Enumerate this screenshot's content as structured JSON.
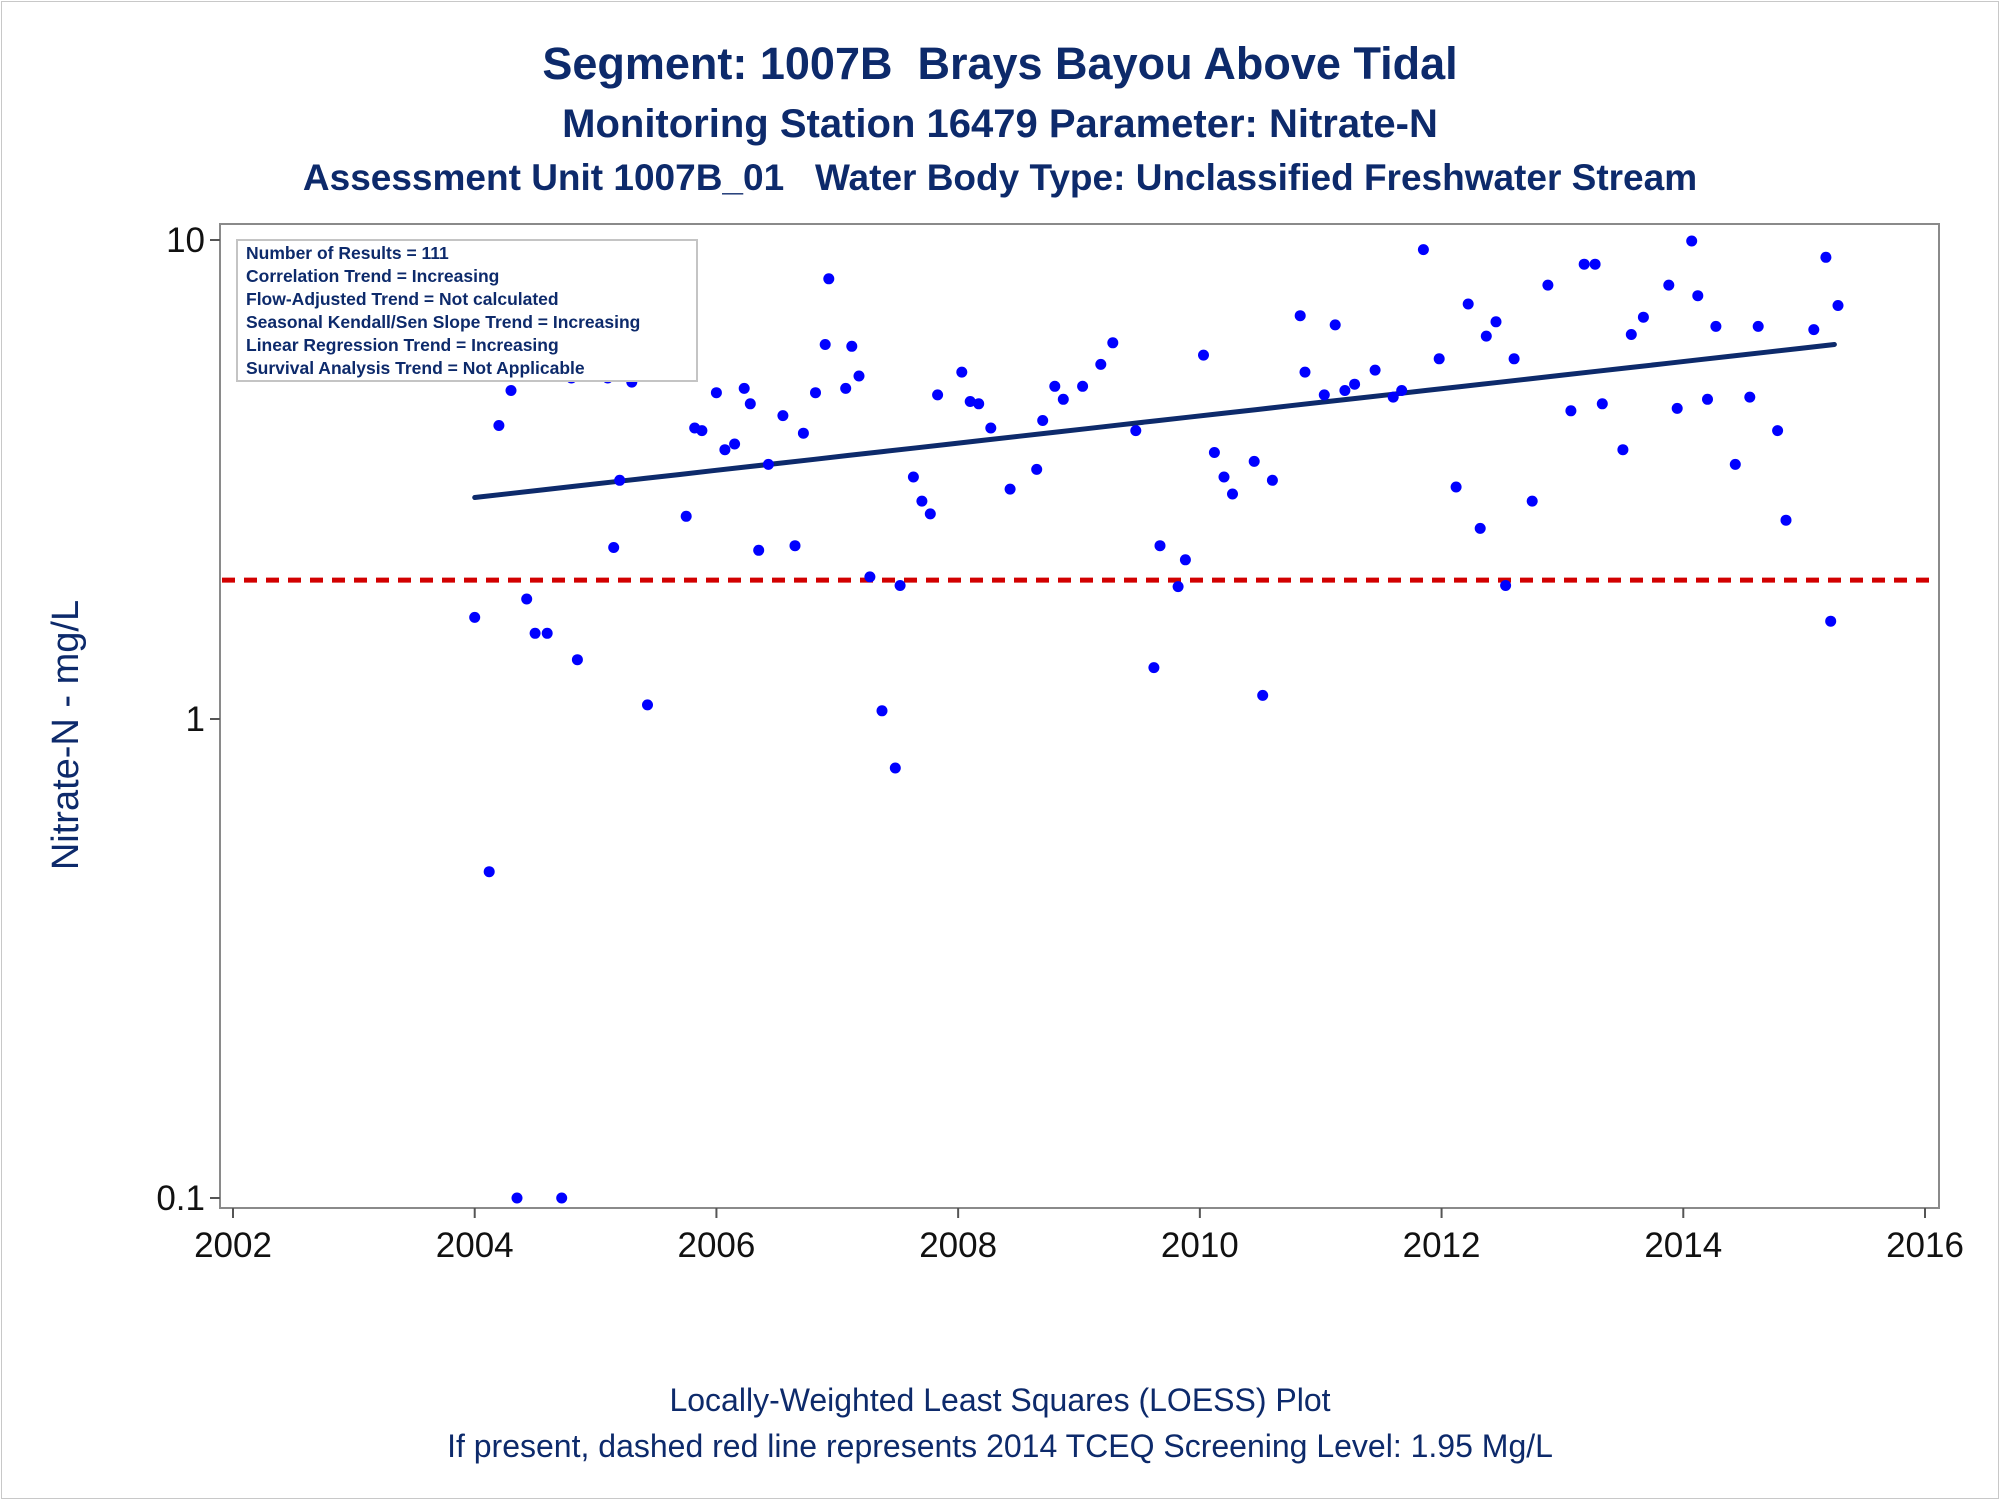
{
  "titles": {
    "line1": "Segment: 1007B  Brays Bayou Above Tidal",
    "line2": "Monitoring Station 16479 Parameter: Nitrate-N",
    "line3": "Assessment Unit 1007B_01   Water Body Type: Unclassified Freshwater Stream"
  },
  "footnotes": {
    "line1": "Locally-Weighted Least Squares (LOESS) Plot",
    "line2": "If present, dashed red line represents 2014 TCEQ Screening Level: 1.95 Mg/L"
  },
  "chart_data": {
    "type": "scatter",
    "title": "Segment: 1007B  Brays Bayou Above Tidal",
    "xlabel": "",
    "ylabel": "Nitrate-N - mg/L",
    "x_scale": "linear (date, years)",
    "y_scale": "log10",
    "xlim": [
      2002,
      2016
    ],
    "ylim": [
      0.1,
      10
    ],
    "x_ticks": [
      "2002",
      "2004",
      "2006",
      "2008",
      "2010",
      "2012",
      "2014",
      "2016"
    ],
    "y_ticks": [
      "0.1",
      "1",
      "10"
    ],
    "grid": false,
    "legend": "none",
    "colors": {
      "points": "#0000ff",
      "trend_line": "#0d2a6b",
      "screening_line": "#d20000",
      "text": "#0d2a6b"
    },
    "stats_box": {
      "position": "top-left",
      "lines": [
        "Number of Results = 111",
        "Correlation Trend = Increasing",
        "Flow-Adjusted Trend = Not calculated",
        "Seasonal Kendall/Sen Slope Trend = Increasing",
        "Linear Regression Trend = Increasing",
        "Survival Analysis Trend = Not Applicable"
      ]
    },
    "screening_level": {
      "value": 1.95,
      "style": "dashed"
    },
    "trend_line": {
      "x": [
        2004.0,
        2015.25
      ],
      "y": [
        2.9,
        6.05
      ]
    },
    "points": [
      {
        "x": 2004.0,
        "y": 1.63
      },
      {
        "x": 2004.04,
        "y": 6.0
      },
      {
        "x": 2004.12,
        "y": 0.48
      },
      {
        "x": 2004.2,
        "y": 4.1
      },
      {
        "x": 2004.3,
        "y": 4.85
      },
      {
        "x": 2004.35,
        "y": 0.1
      },
      {
        "x": 2004.43,
        "y": 1.78
      },
      {
        "x": 2004.5,
        "y": 1.51
      },
      {
        "x": 2004.6,
        "y": 1.51
      },
      {
        "x": 2004.72,
        "y": 0.1
      },
      {
        "x": 2004.8,
        "y": 5.15
      },
      {
        "x": 2004.85,
        "y": 1.33
      },
      {
        "x": 2004.97,
        "y": 5.35
      },
      {
        "x": 2005.1,
        "y": 5.15
      },
      {
        "x": 2005.15,
        "y": 2.28
      },
      {
        "x": 2005.2,
        "y": 3.15
      },
      {
        "x": 2005.3,
        "y": 5.05
      },
      {
        "x": 2005.43,
        "y": 1.07
      },
      {
        "x": 2005.75,
        "y": 2.65
      },
      {
        "x": 2005.82,
        "y": 4.05
      },
      {
        "x": 2005.88,
        "y": 4.0
      },
      {
        "x": 2006.0,
        "y": 4.8
      },
      {
        "x": 2006.07,
        "y": 3.65
      },
      {
        "x": 2006.15,
        "y": 3.75
      },
      {
        "x": 2006.23,
        "y": 4.9
      },
      {
        "x": 2006.28,
        "y": 4.55
      },
      {
        "x": 2006.35,
        "y": 2.25
      },
      {
        "x": 2006.43,
        "y": 3.4
      },
      {
        "x": 2006.55,
        "y": 4.3
      },
      {
        "x": 2006.65,
        "y": 2.3
      },
      {
        "x": 2006.72,
        "y": 3.95
      },
      {
        "x": 2006.82,
        "y": 4.8
      },
      {
        "x": 2006.9,
        "y": 6.05
      },
      {
        "x": 2006.93,
        "y": 8.3
      },
      {
        "x": 2007.07,
        "y": 4.9
      },
      {
        "x": 2007.12,
        "y": 6.0
      },
      {
        "x": 2007.18,
        "y": 5.2
      },
      {
        "x": 2007.27,
        "y": 1.98
      },
      {
        "x": 2007.37,
        "y": 1.04
      },
      {
        "x": 2007.48,
        "y": 0.79
      },
      {
        "x": 2007.52,
        "y": 1.9
      },
      {
        "x": 2007.63,
        "y": 3.2
      },
      {
        "x": 2007.7,
        "y": 2.85
      },
      {
        "x": 2007.77,
        "y": 2.68
      },
      {
        "x": 2007.83,
        "y": 4.75
      },
      {
        "x": 2008.03,
        "y": 5.3
      },
      {
        "x": 2008.1,
        "y": 4.6
      },
      {
        "x": 2008.17,
        "y": 4.55
      },
      {
        "x": 2008.27,
        "y": 4.05
      },
      {
        "x": 2008.43,
        "y": 3.02
      },
      {
        "x": 2008.65,
        "y": 3.32
      },
      {
        "x": 2008.7,
        "y": 4.2
      },
      {
        "x": 2008.8,
        "y": 4.95
      },
      {
        "x": 2008.87,
        "y": 4.65
      },
      {
        "x": 2009.03,
        "y": 4.95
      },
      {
        "x": 2009.18,
        "y": 5.5
      },
      {
        "x": 2009.28,
        "y": 6.1
      },
      {
        "x": 2009.47,
        "y": 4.0
      },
      {
        "x": 2009.62,
        "y": 1.28
      },
      {
        "x": 2009.67,
        "y": 2.3
      },
      {
        "x": 2009.82,
        "y": 1.89
      },
      {
        "x": 2009.88,
        "y": 2.15
      },
      {
        "x": 2010.03,
        "y": 5.75
      },
      {
        "x": 2010.12,
        "y": 3.6
      },
      {
        "x": 2010.2,
        "y": 3.2
      },
      {
        "x": 2010.27,
        "y": 2.95
      },
      {
        "x": 2010.45,
        "y": 3.45
      },
      {
        "x": 2010.52,
        "y": 1.12
      },
      {
        "x": 2010.6,
        "y": 3.15
      },
      {
        "x": 2010.83,
        "y": 6.95
      },
      {
        "x": 2010.87,
        "y": 5.3
      },
      {
        "x": 2011.03,
        "y": 4.75
      },
      {
        "x": 2011.12,
        "y": 6.65
      },
      {
        "x": 2011.2,
        "y": 4.85
      },
      {
        "x": 2011.28,
        "y": 5.0
      },
      {
        "x": 2011.45,
        "y": 5.35
      },
      {
        "x": 2011.6,
        "y": 4.7
      },
      {
        "x": 2011.67,
        "y": 4.85
      },
      {
        "x": 2011.85,
        "y": 9.55
      },
      {
        "x": 2011.98,
        "y": 5.65
      },
      {
        "x": 2012.12,
        "y": 3.05
      },
      {
        "x": 2012.22,
        "y": 7.35
      },
      {
        "x": 2012.32,
        "y": 2.5
      },
      {
        "x": 2012.37,
        "y": 6.3
      },
      {
        "x": 2012.45,
        "y": 6.75
      },
      {
        "x": 2012.53,
        "y": 1.9
      },
      {
        "x": 2012.6,
        "y": 5.65
      },
      {
        "x": 2012.75,
        "y": 2.85
      },
      {
        "x": 2012.88,
        "y": 8.05
      },
      {
        "x": 2013.07,
        "y": 4.4
      },
      {
        "x": 2013.18,
        "y": 8.9
      },
      {
        "x": 2013.27,
        "y": 8.9
      },
      {
        "x": 2013.33,
        "y": 4.55
      },
      {
        "x": 2013.5,
        "y": 3.65
      },
      {
        "x": 2013.57,
        "y": 6.35
      },
      {
        "x": 2013.67,
        "y": 6.9
      },
      {
        "x": 2013.88,
        "y": 8.05
      },
      {
        "x": 2013.95,
        "y": 4.45
      },
      {
        "x": 2014.07,
        "y": 9.95
      },
      {
        "x": 2014.12,
        "y": 7.65
      },
      {
        "x": 2014.2,
        "y": 4.65
      },
      {
        "x": 2014.27,
        "y": 6.6
      },
      {
        "x": 2014.43,
        "y": 3.4
      },
      {
        "x": 2014.55,
        "y": 4.7
      },
      {
        "x": 2014.62,
        "y": 6.6
      },
      {
        "x": 2014.78,
        "y": 4.0
      },
      {
        "x": 2014.85,
        "y": 2.6
      },
      {
        "x": 2015.08,
        "y": 6.5
      },
      {
        "x": 2015.18,
        "y": 9.2
      },
      {
        "x": 2015.22,
        "y": 1.6
      },
      {
        "x": 2015.28,
        "y": 7.3
      }
    ]
  }
}
